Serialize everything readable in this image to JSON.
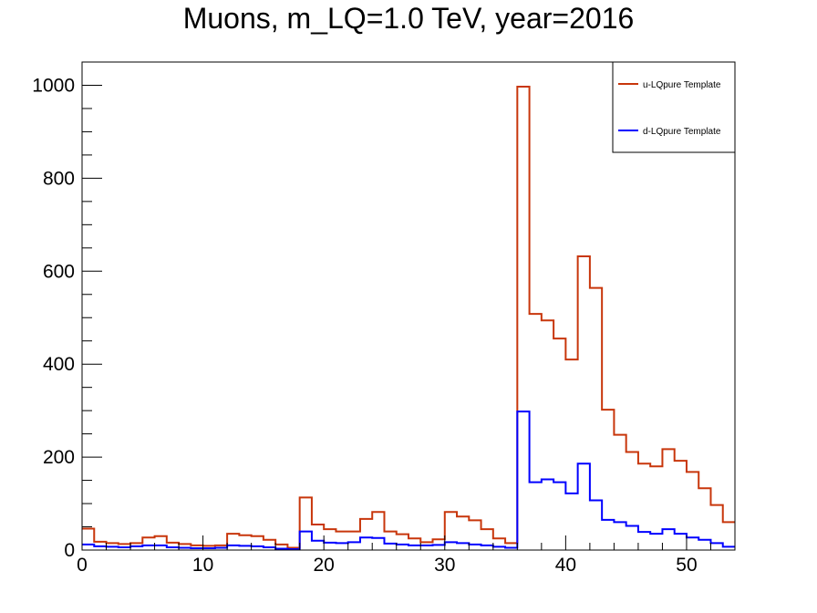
{
  "chart_data": {
    "type": "line",
    "title": "Muons, m_LQ=1.0 TeV, year=2016",
    "xlabel": "",
    "ylabel": "",
    "xlim": [
      0,
      54
    ],
    "ylim": [
      0,
      1050
    ],
    "bin_width": 1,
    "x_ticks": [
      "0",
      "10",
      "20",
      "30",
      "40",
      "50"
    ],
    "y_ticks": [
      "0",
      "200",
      "400",
      "600",
      "800",
      "1000"
    ],
    "grid": false,
    "legend_position": "top-right",
    "series": [
      {
        "name": "u-LQpure Template",
        "color": "#c8360b",
        "values": [
          46,
          18,
          15,
          13,
          15,
          27,
          30,
          16,
          13,
          10,
          9,
          10,
          35,
          32,
          30,
          22,
          12,
          5,
          113,
          55,
          45,
          40,
          40,
          67,
          82,
          40,
          34,
          25,
          17,
          23,
          82,
          72,
          64,
          45,
          25,
          15,
          997,
          508,
          494,
          455,
          410,
          632,
          564,
          302,
          248,
          211,
          186,
          180,
          217,
          192,
          168,
          133,
          97,
          60
        ]
      },
      {
        "name": "d-LQpure Template",
        "color": "#0000ff",
        "values": [
          12,
          8,
          7,
          6,
          8,
          10,
          10,
          6,
          5,
          4,
          4,
          5,
          10,
          9,
          8,
          6,
          3,
          2,
          40,
          20,
          16,
          15,
          17,
          27,
          26,
          14,
          12,
          10,
          10,
          11,
          17,
          15,
          12,
          10,
          7,
          5,
          298,
          146,
          152,
          146,
          122,
          186,
          107,
          65,
          60,
          52,
          39,
          35,
          45,
          35,
          27,
          22,
          15,
          7
        ]
      }
    ]
  }
}
